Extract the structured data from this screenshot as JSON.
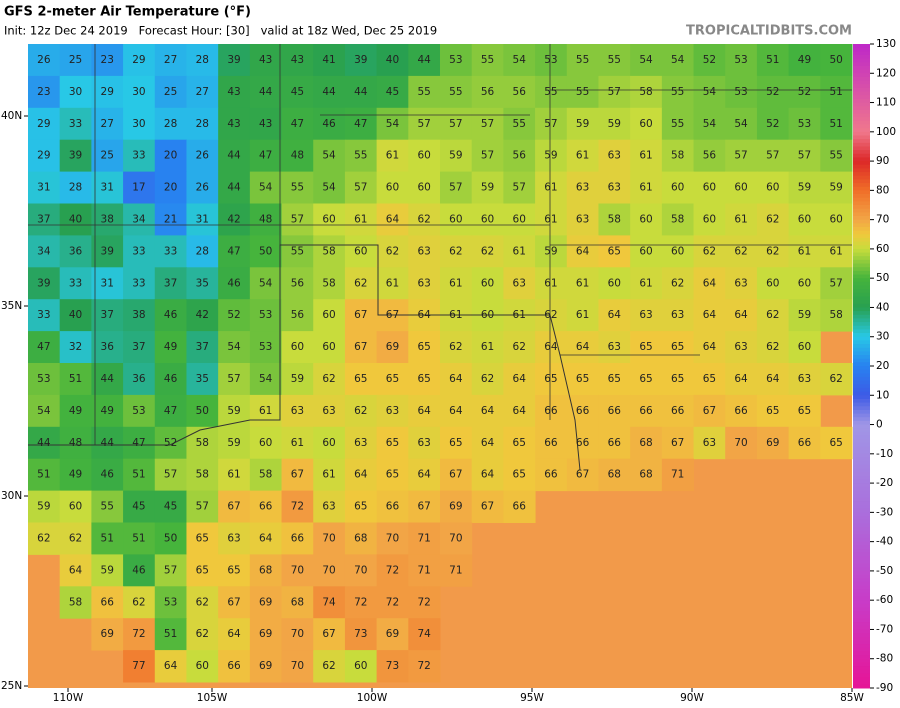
{
  "header": {
    "title": "GFS 2-meter Air Temperature (°F)",
    "subtitle": "Init: 12z Dec 24 2019   Forecast Hour: [30]   valid at 18z Wed, Dec 25 2019",
    "brand": "TROPICALTIDBITS.COM"
  },
  "axes": {
    "lat_labels": [
      "40N",
      "35N",
      "30N",
      "25N"
    ],
    "lon_labels": [
      "110W",
      "105W",
      "100W",
      "95W",
      "90W",
      "85W"
    ]
  },
  "colorbar": {
    "ticks": [
      130,
      120,
      110,
      100,
      90,
      80,
      70,
      60,
      50,
      40,
      30,
      20,
      10,
      0,
      -10,
      -20,
      -30,
      -40,
      -50,
      -60,
      -70,
      -80,
      -90
    ]
  },
  "grid": {
    "rows": [
      [
        26,
        25,
        23,
        29,
        27,
        28,
        39,
        43,
        43,
        41,
        39,
        40,
        44,
        53,
        55,
        54,
        53,
        55,
        55,
        54,
        54,
        52,
        53,
        51,
        49,
        50
      ],
      [
        23,
        30,
        29,
        30,
        25,
        27,
        43,
        44,
        45,
        44,
        44,
        45,
        55,
        55,
        56,
        56,
        55,
        55,
        57,
        58,
        55,
        54,
        53,
        52,
        52,
        51
      ],
      [
        29,
        33,
        27,
        30,
        28,
        28,
        43,
        43,
        47,
        46,
        47,
        54,
        57,
        57,
        57,
        55,
        57,
        59,
        59,
        60,
        55,
        54,
        54,
        52,
        53,
        51
      ],
      [
        29,
        39,
        25,
        33,
        20,
        26,
        44,
        47,
        48,
        54,
        55,
        61,
        60,
        59,
        57,
        56,
        59,
        61,
        63,
        61,
        58,
        56,
        57,
        57,
        57,
        55
      ],
      [
        31,
        28,
        31,
        17,
        20,
        26,
        44,
        54,
        55,
        54,
        57,
        60,
        60,
        57,
        59,
        57,
        61,
        63,
        63,
        61,
        60,
        60,
        60,
        60,
        59,
        59
      ],
      [
        37,
        40,
        38,
        34,
        21,
        31,
        42,
        48,
        57,
        60,
        61,
        64,
        62,
        60,
        60,
        60,
        61,
        63,
        58,
        60,
        58,
        60,
        61,
        62,
        60,
        60
      ],
      [
        34,
        36,
        39,
        33,
        33,
        28,
        47,
        50,
        55,
        58,
        60,
        62,
        63,
        62,
        62,
        61,
        59,
        64,
        65,
        60,
        60,
        62,
        62,
        62,
        61,
        61
      ],
      [
        39,
        33,
        31,
        33,
        37,
        35,
        46,
        54,
        56,
        58,
        62,
        61,
        63,
        61,
        60,
        63,
        61,
        61,
        60,
        61,
        62,
        64,
        63,
        60,
        60,
        57
      ],
      [
        33,
        40,
        37,
        38,
        46,
        42,
        52,
        53,
        56,
        60,
        67,
        67,
        64,
        61,
        60,
        61,
        62,
        61,
        64,
        63,
        63,
        64,
        64,
        62,
        59,
        58
      ],
      [
        47,
        32,
        36,
        37,
        49,
        37,
        54,
        53,
        60,
        60,
        67,
        69,
        65,
        62,
        61,
        62,
        64,
        64,
        63,
        65,
        65,
        64,
        63,
        62,
        60
      ],
      [
        53,
        51,
        44,
        36,
        46,
        35,
        57,
        54,
        59,
        62,
        65,
        65,
        65,
        64,
        62,
        64,
        65,
        65,
        65,
        65,
        65,
        65,
        64,
        64,
        63,
        62
      ],
      [
        54,
        49,
        49,
        53,
        47,
        50,
        59,
        61,
        63,
        63,
        62,
        63,
        64,
        64,
        64,
        64,
        66,
        66,
        66,
        66,
        66,
        67,
        66,
        65,
        65
      ],
      [
        44,
        48,
        44,
        47,
        52,
        58,
        59,
        60,
        61,
        60,
        63,
        65,
        63,
        65,
        64,
        65,
        66,
        66,
        66,
        68,
        67,
        63,
        70,
        69,
        66,
        65
      ],
      [
        51,
        49,
        46,
        51,
        57,
        58,
        61,
        58,
        67,
        61,
        64,
        65,
        64,
        67,
        64,
        65,
        66,
        67,
        68,
        68,
        71
      ],
      [
        59,
        60,
        55,
        45,
        45,
        57,
        67,
        66,
        72,
        63,
        65,
        66,
        67,
        69,
        67,
        66
      ],
      [
        62,
        62,
        51,
        51,
        50,
        65,
        63,
        64,
        66,
        70,
        68,
        70,
        71,
        70
      ],
      [
        null,
        64,
        59,
        46,
        57,
        65,
        65,
        68,
        70,
        70,
        70,
        72,
        71,
        71
      ],
      [
        null,
        58,
        66,
        62,
        53,
        62,
        67,
        69,
        68,
        74,
        72,
        72,
        72
      ],
      [
        null,
        null,
        69,
        72,
        51,
        62,
        64,
        69,
        70,
        67,
        73,
        69,
        74
      ],
      [
        null,
        null,
        null,
        77,
        64,
        60,
        66,
        69,
        70,
        62,
        60,
        73,
        72
      ]
    ]
  }
}
